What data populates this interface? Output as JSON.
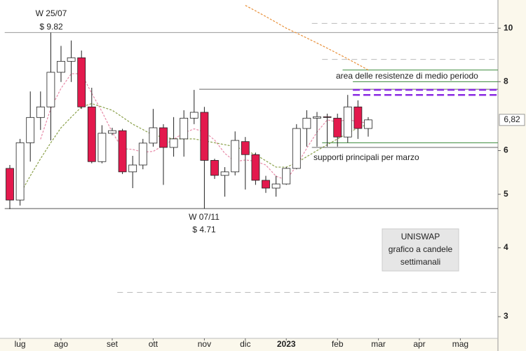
{
  "chart_data": {
    "type": "candlestick",
    "categories": [
      null,
      "lug",
      null,
      null,
      null,
      "ago",
      null,
      null,
      null,
      null,
      "set",
      null,
      null,
      null,
      "ott",
      null,
      null,
      null,
      null,
      "nov",
      null,
      null,
      null,
      "dic",
      null,
      null,
      null,
      "2023",
      null,
      null,
      null,
      null,
      "feb",
      null,
      null,
      null,
      "mar",
      null,
      null,
      null,
      "apr",
      null,
      null,
      null,
      "mag",
      null,
      null,
      null
    ],
    "open": [
      5.57,
      4.88,
      6.2,
      6.89,
      7.2,
      8.32,
      8.71,
      8.84,
      7.2,
      5.73,
      6.45,
      6.52,
      5.49,
      5.65,
      6.19,
      6.6,
      6.08,
      6.3,
      6.87,
      7.04,
      5.76,
      5.41,
      5.49,
      6.23,
      5.9,
      5.3,
      5.13,
      5.22,
      5.57,
      6.58,
      6.87,
      6.91,
      6.87,
      6.35,
      7.2,
      6.58,
      null,
      null,
      null,
      null,
      null,
      null,
      null,
      null,
      null,
      null,
      null,
      null
    ],
    "high": [
      5.65,
      6.3,
      7.68,
      7.68,
      9.82,
      9.29,
      9.5,
      9.11,
      7.8,
      6.67,
      6.6,
      6.57,
      5.87,
      6.3,
      7.14,
      6.7,
      6.9,
      7.1,
      7.73,
      7.2,
      5.8,
      5.6,
      6.5,
      6.35,
      5.95,
      5.4,
      5.4,
      5.6,
      6.7,
      7.1,
      7.05,
      7.0,
      7.0,
      7.57,
      7.4,
      6.9,
      null,
      null,
      null,
      null,
      null,
      null,
      null,
      null,
      null,
      null,
      null,
      null
    ],
    "low": [
      4.7,
      4.77,
      5.73,
      6.54,
      6.26,
      7.99,
      7.99,
      7.14,
      5.69,
      5.69,
      6.4,
      5.44,
      5.13,
      5.55,
      6.1,
      5.2,
      5.85,
      5.85,
      6.7,
      4.71,
      5.33,
      4.95,
      5.41,
      5.1,
      5.2,
      5.03,
      4.95,
      5.2,
      5.55,
      6.1,
      6.1,
      6.1,
      6.1,
      6.2,
      6.3,
      6.36,
      null,
      null,
      null,
      null,
      null,
      null,
      null,
      null,
      null,
      null,
      null,
      null
    ],
    "close": [
      4.88,
      6.2,
      6.89,
      7.2,
      8.32,
      8.71,
      8.84,
      7.2,
      5.73,
      6.45,
      6.52,
      5.49,
      5.65,
      6.19,
      6.6,
      6.08,
      6.3,
      6.87,
      7.04,
      5.76,
      5.41,
      5.49,
      6.26,
      5.9,
      5.3,
      5.13,
      5.22,
      5.57,
      6.58,
      6.87,
      6.91,
      6.9,
      6.35,
      7.2,
      6.58,
      6.82,
      null,
      null,
      null,
      null,
      null,
      null,
      null,
      null,
      null,
      null,
      null,
      null
    ],
    "up_color": "#ffffff",
    "down_color": "#e3194d",
    "lines": [
      {
        "color": "#e88aa8",
        "values": [
          null,
          null,
          null,
          6.29,
          7.15,
          7.78,
          8.27,
          8.27,
          7.62,
          7.06,
          6.48,
          6.05,
          6.03,
          5.96,
          5.98,
          6.13,
          6.29,
          6.46,
          6.57,
          6.49,
          6.27,
          5.93,
          5.73,
          5.77,
          5.74,
          5.65,
          5.39,
          5.31,
          5.63,
          6.06,
          6.48,
          6.82,
          6.76,
          6.84,
          6.76,
          6.74,
          null,
          null,
          null,
          null,
          null,
          null,
          null,
          null,
          null,
          null,
          null,
          null
        ]
      },
      {
        "color": "#8aa04a",
        "values": [
          null,
          5.0,
          5.4,
          5.8,
          6.2,
          6.6,
          6.9,
          7.2,
          7.3,
          7.2,
          7.1,
          6.9,
          6.7,
          6.55,
          6.4,
          6.35,
          6.3,
          6.3,
          6.3,
          6.25,
          6.2,
          6.15,
          6.1,
          6.0,
          5.9,
          5.75,
          5.6,
          5.6,
          5.7,
          5.85,
          6.0,
          6.15,
          6.3,
          6.45,
          6.6,
          6.7,
          null,
          null,
          null,
          null,
          null,
          null,
          null,
          null,
          null,
          null,
          null,
          null
        ]
      },
      {
        "color": "#e8903a",
        "values": [
          null,
          null,
          null,
          null,
          null,
          null,
          null,
          null,
          null,
          null,
          null,
          null,
          null,
          null,
          null,
          null,
          null,
          null,
          null,
          null,
          null,
          null,
          null,
          11.0,
          10.75,
          10.5,
          10.25,
          10.0,
          9.8,
          9.6,
          9.4,
          9.2,
          9.0,
          8.8,
          8.6,
          8.4,
          null,
          null,
          null,
          null,
          null,
          null,
          null,
          null,
          null,
          null,
          null,
          null
        ]
      }
    ],
    "levels": [
      {
        "value": 9.82,
        "start": 0,
        "color": "#999999",
        "style": "solid"
      },
      {
        "value": 4.71,
        "start": 0,
        "color": "#555555",
        "style": "solid"
      },
      {
        "value": 7.75,
        "start": 19,
        "color": "#666666",
        "style": "solid"
      },
      {
        "value": 8.4,
        "start": 33,
        "color": "#3a8a3a",
        "style": "solid"
      },
      {
        "value": 8.0,
        "start": 34,
        "color": "#3a8a3a",
        "style": "solid"
      },
      {
        "value": 7.73,
        "start": 34,
        "color": "#8a2be2",
        "style": "dashed"
      },
      {
        "value": 7.57,
        "start": 34,
        "color": "#8a2be2",
        "style": "dashed"
      },
      {
        "value": 6.2,
        "start": 31,
        "color": "#3a8a3a",
        "style": "solid"
      },
      {
        "value": 6.08,
        "start": 30,
        "color": "#666666",
        "style": "solid"
      },
      {
        "value": 10.2,
        "start": 30,
        "color": "#bbbbbb",
        "style": "dashed"
      },
      {
        "value": 8.78,
        "start": 31,
        "color": "#bbbbbb",
        "style": "dashed"
      },
      {
        "value": 3.32,
        "start": 11,
        "color": "#bbbbbb",
        "style": "dashed"
      }
    ],
    "annotations": [
      "W 25/07",
      "$ 9.82",
      "W 07/11",
      "$ 4.71",
      "area delle resistenze di medio periodo",
      "supporti principali per marzo"
    ],
    "note_box": [
      "UNISWAP",
      "grafico a candele",
      "settimanali"
    ],
    "last": {
      "value": 6.82,
      "label": "6,82"
    },
    "log_scale": true,
    "ylim": [
      2.74,
      11.25
    ],
    "yticks": [
      3,
      4,
      5,
      6,
      8,
      10
    ]
  }
}
